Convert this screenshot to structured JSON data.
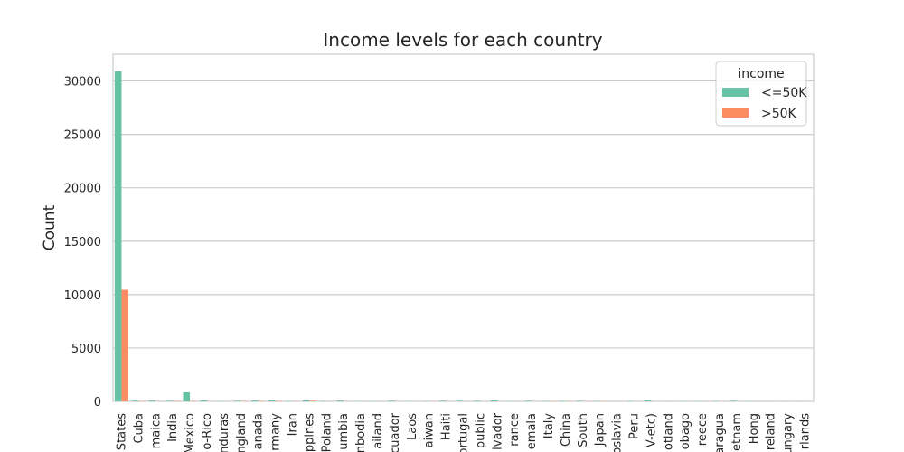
{
  "chart_data": {
    "type": "bar",
    "title": "Income levels for each country",
    "xlabel": "",
    "ylabel": "Count",
    "ylim": [
      0,
      32500
    ],
    "yticks": [
      0,
      5000,
      10000,
      15000,
      20000,
      25000,
      30000
    ],
    "grid": true,
    "legend": {
      "title": "income",
      "placement": "top-right"
    },
    "categories": [
      "States",
      "Cuba",
      "maica",
      "India",
      "Mexico",
      "o-Rico",
      "nduras",
      "ngland",
      "anada",
      "rmany",
      "Iran",
      "ppines",
      "Poland",
      "umbia",
      "nbodia",
      "ailand",
      "cuador",
      "Laos",
      "aiwan",
      "Haiti",
      "ortugal",
      "public",
      "lvador",
      "rance",
      "emala",
      "Italy",
      "China",
      "South",
      "Japan",
      "oslavia",
      "Peru",
      "V-etc)",
      "otland",
      "obago",
      "reece",
      "aragua",
      "etnam",
      "Hong",
      "reland",
      "ungary",
      "rlands"
    ],
    "series": [
      {
        "name": "<=50K",
        "color": "#66c2a5",
        "values": [
          30900,
          70,
          80,
          60,
          850,
          100,
          15,
          60,
          80,
          100,
          30,
          120,
          40,
          80,
          20,
          20,
          60,
          20,
          20,
          60,
          60,
          60,
          100,
          20,
          60,
          40,
          40,
          50,
          40,
          15,
          30,
          100,
          10,
          20,
          20,
          30,
          60,
          20,
          20,
          10,
          10
        ]
      },
      {
        "name": ">50K",
        "color": "#fc8d62",
        "values": [
          10450,
          30,
          10,
          40,
          30,
          10,
          5,
          30,
          40,
          40,
          20,
          60,
          10,
          10,
          10,
          10,
          10,
          5,
          20,
          10,
          10,
          5,
          10,
          10,
          5,
          20,
          20,
          20,
          20,
          5,
          5,
          10,
          5,
          5,
          10,
          5,
          5,
          5,
          5,
          5,
          5
        ]
      }
    ]
  }
}
